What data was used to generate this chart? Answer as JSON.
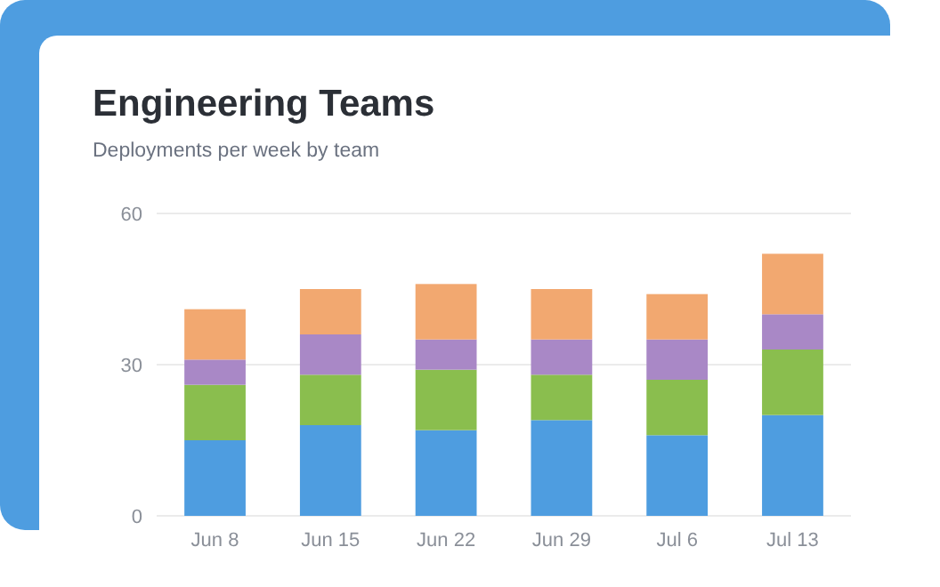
{
  "chart_data": {
    "type": "bar",
    "title": "Engineering Teams",
    "subtitle": "Deployments per week by team",
    "stacked": true,
    "categories": [
      "Jun 8",
      "Jun 15",
      "Jun 22",
      "Jun 29",
      "Jul 6",
      "Jul 13"
    ],
    "series": [
      {
        "color": "#4e9de0",
        "values": [
          15,
          18,
          17,
          19,
          16,
          20
        ]
      },
      {
        "color": "#8abe4e",
        "values": [
          11,
          10,
          12,
          9,
          11,
          13
        ]
      },
      {
        "color": "#a988c6",
        "values": [
          5,
          8,
          6,
          7,
          8,
          7
        ]
      },
      {
        "color": "#f2a870",
        "values": [
          10,
          9,
          11,
          10,
          9,
          12
        ]
      }
    ],
    "ylim": [
      0,
      60
    ],
    "yticks": [
      0,
      30,
      60
    ],
    "grid": "y"
  }
}
